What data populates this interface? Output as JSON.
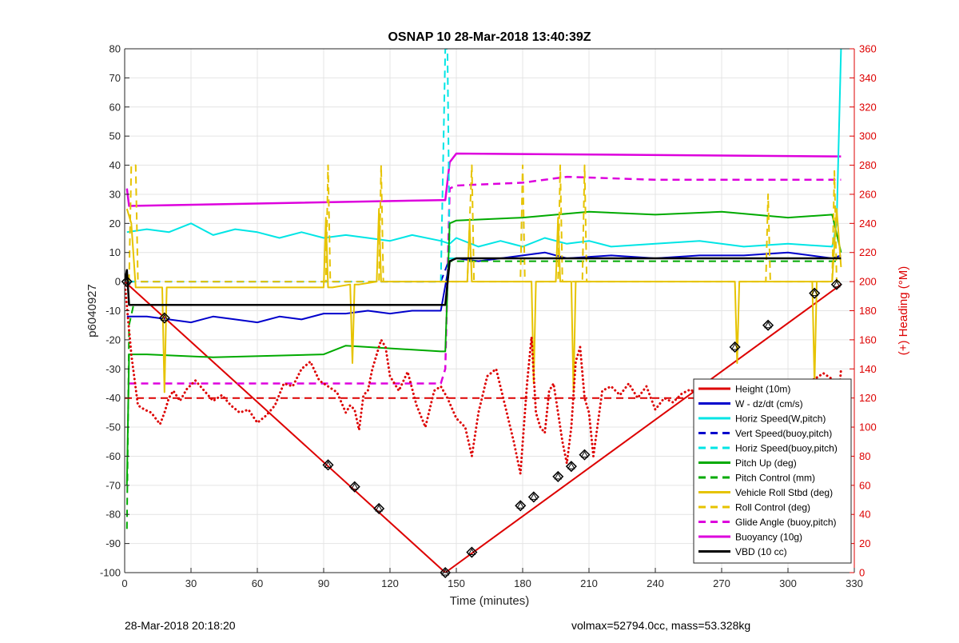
{
  "chart_data": {
    "type": "line",
    "title": "OSNAP 10 28-Mar-2018 13:40:39Z",
    "xlabel": "Time (minutes)",
    "ylabel_left": "p6040927",
    "ylabel_right": "(+) Heading (°M)",
    "xlim": [
      0,
      330
    ],
    "ylim_left": [
      -100,
      80
    ],
    "ylim_right": [
      0,
      360
    ],
    "x_ticks": [
      0,
      30,
      60,
      90,
      120,
      150,
      180,
      210,
      240,
      270,
      300,
      330
    ],
    "y_ticks_left": [
      -100,
      -90,
      -80,
      -70,
      -60,
      -50,
      -40,
      -30,
      -20,
      -10,
      0,
      10,
      20,
      30,
      40,
      50,
      60,
      70,
      80
    ],
    "y_ticks_right": [
      0,
      20,
      40,
      60,
      80,
      100,
      120,
      140,
      160,
      180,
      200,
      220,
      240,
      260,
      280,
      300,
      320,
      340,
      360
    ],
    "grid": true,
    "legend_position": "lower-right",
    "legend": [
      {
        "label": "Height (10m)",
        "color": "#dd0000",
        "dash": false
      },
      {
        "label": "W - dz/dt (cm/s)",
        "color": "#0000cc",
        "dash": false
      },
      {
        "label": "Horiz Speed(W,pitch)",
        "color": "#00e5e5",
        "dash": false
      },
      {
        "label": "Vert Speed(buoy,pitch)",
        "color": "#0000cc",
        "dash": true
      },
      {
        "label": "Horiz Speed(buoy,pitch)",
        "color": "#00e5e5",
        "dash": true
      },
      {
        "label": "Pitch Up (deg)",
        "color": "#00aa00",
        "dash": false
      },
      {
        "label": "Pitch Control (mm)",
        "color": "#00aa00",
        "dash": true
      },
      {
        "label": "Vehicle Roll Stbd (deg)",
        "color": "#e6c300",
        "dash": false
      },
      {
        "label": "Roll Control (deg)",
        "color": "#e6c300",
        "dash": true
      },
      {
        "label": "Glide Angle (buoy,pitch)",
        "color": "#dd00dd",
        "dash": true
      },
      {
        "label": "Buoyancy (10g)",
        "color": "#dd00dd",
        "dash": false
      },
      {
        "label": "VBD (10 cc)",
        "color": "#000000",
        "dash": false
      }
    ],
    "series": [
      {
        "name": "Height (10m)",
        "color": "#dd0000",
        "dash": false,
        "width": 2,
        "x": [
          0,
          145,
          324
        ],
        "y": [
          0,
          -100,
          -1
        ]
      },
      {
        "name": "Buoyancy (10g)",
        "color": "#dd00dd",
        "dash": false,
        "width": 2.5,
        "x": [
          1,
          2,
          143,
          145,
          147,
          150,
          324
        ],
        "y": [
          32,
          26,
          28,
          28,
          41,
          44,
          43
        ]
      },
      {
        "name": "Glide Angle (buoy,pitch)",
        "color": "#dd00dd",
        "dash": true,
        "width": 2.5,
        "x": [
          2,
          143,
          145,
          147,
          150,
          180,
          200,
          240,
          300,
          324
        ],
        "y": [
          -35,
          -35,
          -30,
          32,
          33,
          34,
          36,
          35,
          35,
          35
        ]
      },
      {
        "name": "Horiz Speed(W,pitch)",
        "color": "#00e5e5",
        "dash": false,
        "width": 2,
        "x": [
          1,
          10,
          20,
          30,
          40,
          50,
          60,
          70,
          80,
          90,
          100,
          110,
          120,
          130,
          143,
          147,
          150,
          160,
          170,
          180,
          190,
          200,
          210,
          220,
          240,
          260,
          280,
          300,
          320,
          322,
          324
        ],
        "y": [
          17,
          18,
          17,
          20,
          16,
          18,
          17,
          15,
          17,
          15,
          16,
          15,
          14,
          16,
          14,
          13,
          15,
          12,
          14,
          12,
          15,
          13,
          14,
          12,
          13,
          14,
          12,
          13,
          12,
          20,
          80
        ]
      },
      {
        "name": "W - dz/dt (cm/s)",
        "color": "#0000cc",
        "dash": false,
        "width": 2,
        "x": [
          1,
          10,
          20,
          30,
          40,
          50,
          60,
          70,
          80,
          90,
          100,
          110,
          120,
          130,
          143,
          147,
          150,
          160,
          170,
          180,
          190,
          200,
          220,
          240,
          260,
          280,
          300,
          320,
          324
        ],
        "y": [
          -12,
          -12,
          -13,
          -14,
          -12,
          -13,
          -14,
          -12,
          -13,
          -11,
          -11,
          -10,
          -11,
          -10,
          -10,
          7,
          8,
          7,
          8,
          9,
          10,
          8,
          9,
          8,
          9,
          9,
          10,
          8,
          9
        ]
      },
      {
        "name": "Vert Speed(buoy,pitch)",
        "color": "#0000cc",
        "dash": true,
        "width": 2,
        "x": [
          2,
          143,
          147,
          324
        ],
        "y": [
          0,
          0,
          8,
          8
        ]
      },
      {
        "name": "Horiz Speed(buoy,pitch)",
        "color": "#00e5e5",
        "dash": true,
        "width": 2,
        "x": [
          2,
          143,
          145,
          146,
          147,
          324
        ],
        "y": [
          0,
          0,
          80,
          80,
          8,
          8
        ]
      },
      {
        "name": "Pitch Up (deg)",
        "color": "#00aa00",
        "dash": false,
        "width": 2,
        "x": [
          1,
          2,
          10,
          40,
          90,
          100,
          143,
          145,
          147,
          150,
          180,
          210,
          240,
          270,
          300,
          320,
          324
        ],
        "y": [
          -70,
          -25,
          -25,
          -26,
          -25,
          -22,
          -24,
          -24,
          20,
          21,
          22,
          24,
          23,
          24,
          22,
          23,
          10
        ]
      },
      {
        "name": "Pitch Control (mm)",
        "color": "#00aa00",
        "dash": true,
        "width": 2,
        "x": [
          1,
          2,
          4,
          143,
          145,
          147,
          324
        ],
        "y": [
          -85,
          -15,
          -8,
          -8,
          -8,
          7,
          7
        ]
      },
      {
        "name": "Vehicle Roll Stbd (deg)",
        "color": "#e6c300",
        "dash": false,
        "width": 2,
        "x": [
          1,
          3,
          5,
          17,
          18,
          19,
          20,
          90,
          91,
          92,
          93,
          94,
          102,
          103,
          104,
          106,
          114,
          115,
          116,
          117,
          143,
          147,
          155,
          156,
          157,
          158,
          184,
          185,
          186,
          187,
          195,
          196,
          197,
          198,
          202,
          203,
          204,
          205,
          276,
          277,
          278,
          279,
          311,
          312,
          313,
          314,
          320,
          322,
          324
        ],
        "y": [
          25,
          20,
          -2,
          -2,
          -38,
          -2,
          -2,
          -2,
          22,
          -2,
          -2,
          -2,
          -1,
          -28,
          -1,
          -1,
          0,
          25,
          0,
          0,
          0,
          0,
          0,
          20,
          0,
          0,
          0,
          -35,
          0,
          0,
          0,
          22,
          0,
          0,
          0,
          -38,
          0,
          0,
          0,
          -28,
          0,
          0,
          0,
          -35,
          0,
          0,
          0,
          25,
          5
        ]
      },
      {
        "name": "Roll Control (deg)",
        "color": "#e6c300",
        "dash": true,
        "width": 2,
        "x": [
          2,
          3,
          5,
          6,
          7,
          91,
          92,
          93,
          115,
          116,
          117,
          155,
          157,
          158,
          159,
          179,
          180,
          181,
          196,
          197,
          198,
          207,
          208,
          209,
          290,
          291,
          292,
          320,
          321,
          322,
          324
        ],
        "y": [
          0,
          40,
          40,
          0,
          0,
          0,
          40,
          0,
          0,
          40,
          0,
          0,
          40,
          0,
          0,
          0,
          40,
          0,
          0,
          40,
          0,
          0,
          40,
          0,
          0,
          30,
          0,
          0,
          38,
          0,
          0
        ]
      },
      {
        "name": "Heading",
        "axis": "right",
        "color": "#dd0000",
        "dash": false,
        "width": 3,
        "dots": true,
        "x": [
          0,
          3,
          6,
          9,
          12,
          14,
          16,
          18,
          20,
          22,
          25,
          28,
          32,
          36,
          40,
          44,
          48,
          52,
          56,
          60,
          64,
          68,
          72,
          76,
          80,
          84,
          88,
          92,
          96,
          100,
          102,
          104,
          106,
          108,
          110,
          112,
          114,
          116,
          118,
          120,
          124,
          128,
          132,
          136,
          140,
          143,
          146,
          150,
          154,
          157,
          160,
          164,
          168,
          172,
          176,
          179,
          182,
          184,
          186,
          188,
          190,
          192,
          194,
          196,
          198,
          200,
          202,
          204,
          206,
          208,
          210,
          212,
          216,
          220,
          224,
          228,
          232,
          236,
          240,
          244,
          248,
          252,
          256,
          260,
          264,
          268,
          272,
          276,
          280,
          284,
          288,
          292,
          296,
          300,
          304,
          308,
          312,
          316,
          320,
          322,
          324
        ],
        "y": [
          200,
          150,
          115,
          112,
          110,
          106,
          102,
          110,
          120,
          125,
          118,
          126,
          132,
          125,
          118,
          122,
          115,
          110,
          112,
          103,
          108,
          115,
          130,
          128,
          140,
          145,
          132,
          128,
          124,
          110,
          115,
          112,
          98,
          122,
          125,
          140,
          150,
          160,
          155,
          135,
          125,
          138,
          115,
          100,
          125,
          128,
          120,
          106,
          100,
          80,
          110,
          135,
          140,
          115,
          90,
          68,
          130,
          162,
          110,
          100,
          96,
          125,
          130,
          110,
          90,
          75,
          100,
          145,
          155,
          120,
          110,
          80,
          125,
          128,
          122,
          130,
          120,
          128,
          112,
          120,
          117,
          123,
          126,
          120,
          114,
          118,
          124,
          130,
          118,
          116,
          125,
          132,
          120,
          124,
          128,
          131,
          133,
          137,
          133,
          100,
          140
        ]
      },
      {
        "name": "Heading target",
        "axis": "right",
        "color": "#dd0000",
        "dash": true,
        "width": 2,
        "x": [
          0,
          324
        ],
        "y": [
          120,
          120
        ]
      },
      {
        "name": "VBD (10 cc)",
        "color": "#000000",
        "dash": false,
        "width": 2.5,
        "x": [
          0,
          1,
          2,
          143,
          145,
          147,
          150,
          324
        ],
        "y": [
          0,
          4,
          -8,
          -8,
          -8,
          7,
          8,
          8
        ]
      }
    ],
    "markers": {
      "color": "#000000",
      "x": [
        1,
        18,
        92,
        104,
        115,
        145,
        157,
        179,
        185,
        196,
        202,
        208,
        276,
        291,
        312,
        322
      ],
      "y": [
        0,
        -12.5,
        -63,
        -70.5,
        -78,
        -100,
        -93,
        -77,
        -74,
        -67,
        -63.5,
        -59.5,
        -22.5,
        -15,
        -4,
        -1
      ]
    }
  },
  "footer": {
    "left": "28-Mar-2018 20:18:20",
    "right": "volmax=52794.0cc, mass=53.328kg"
  }
}
